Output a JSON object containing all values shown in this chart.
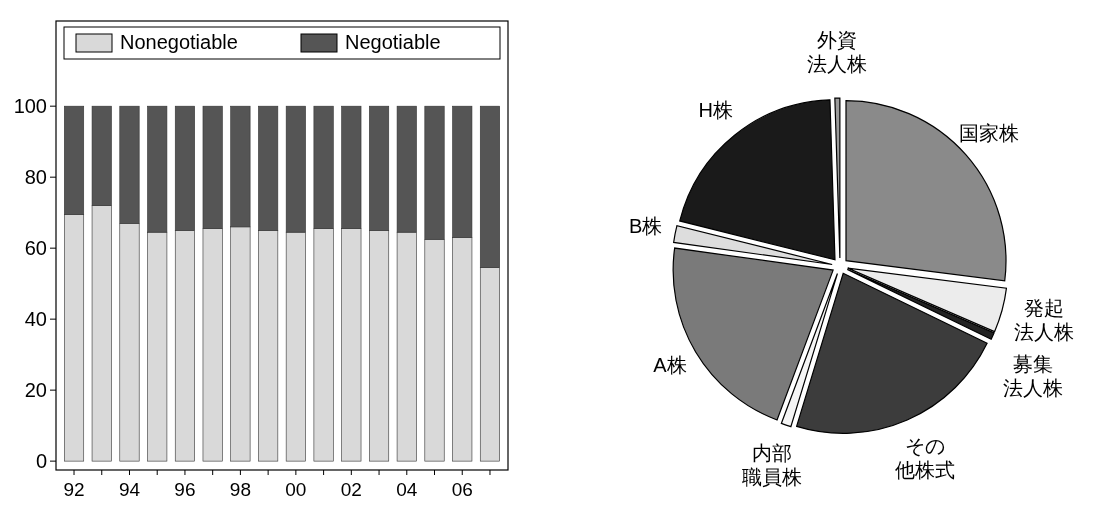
{
  "chart_data": [
    {
      "type": "bar",
      "stacked": true,
      "categories": [
        "92",
        null,
        "94",
        null,
        "96",
        null,
        "98",
        null,
        "00",
        null,
        "02",
        null,
        "04",
        null,
        "06",
        null
      ],
      "series": [
        {
          "name": "Nonegotiable",
          "color": "#d9d9d9",
          "values": [
            69.5,
            72,
            67,
            64.5,
            65,
            65.5,
            66,
            65,
            64.5,
            65.5,
            65.5,
            65,
            64.5,
            62.5,
            63,
            54.5
          ]
        },
        {
          "name": "Negotiable",
          "color": "#555555",
          "values": [
            30.5,
            28,
            33,
            35.5,
            35,
            34.5,
            34,
            35,
            35.5,
            34.5,
            34.5,
            35,
            35.5,
            37.5,
            37,
            45.5
          ]
        }
      ],
      "ylim": [
        -2.5,
        124
      ],
      "yticks": [
        0,
        20,
        40,
        60,
        80,
        100
      ],
      "legend": "top",
      "grid": false
    },
    {
      "type": "pie",
      "categories": [
        "国家株",
        "発起法人株",
        "募集法人株",
        "その他株式",
        "内部職員株",
        "A株",
        "B株",
        "H株",
        "外資法人株"
      ],
      "values": [
        27,
        4.5,
        0.7,
        22.5,
        1,
        21.5,
        1.7,
        20.6,
        0.5
      ],
      "colors": [
        "#8a8a8a",
        "#ececec",
        "#222222",
        "#3c3c3c",
        "#f5f5f5",
        "#7a7a7a",
        "#dddddd",
        "#1a1a1a",
        "#9a9a9a"
      ]
    }
  ]
}
